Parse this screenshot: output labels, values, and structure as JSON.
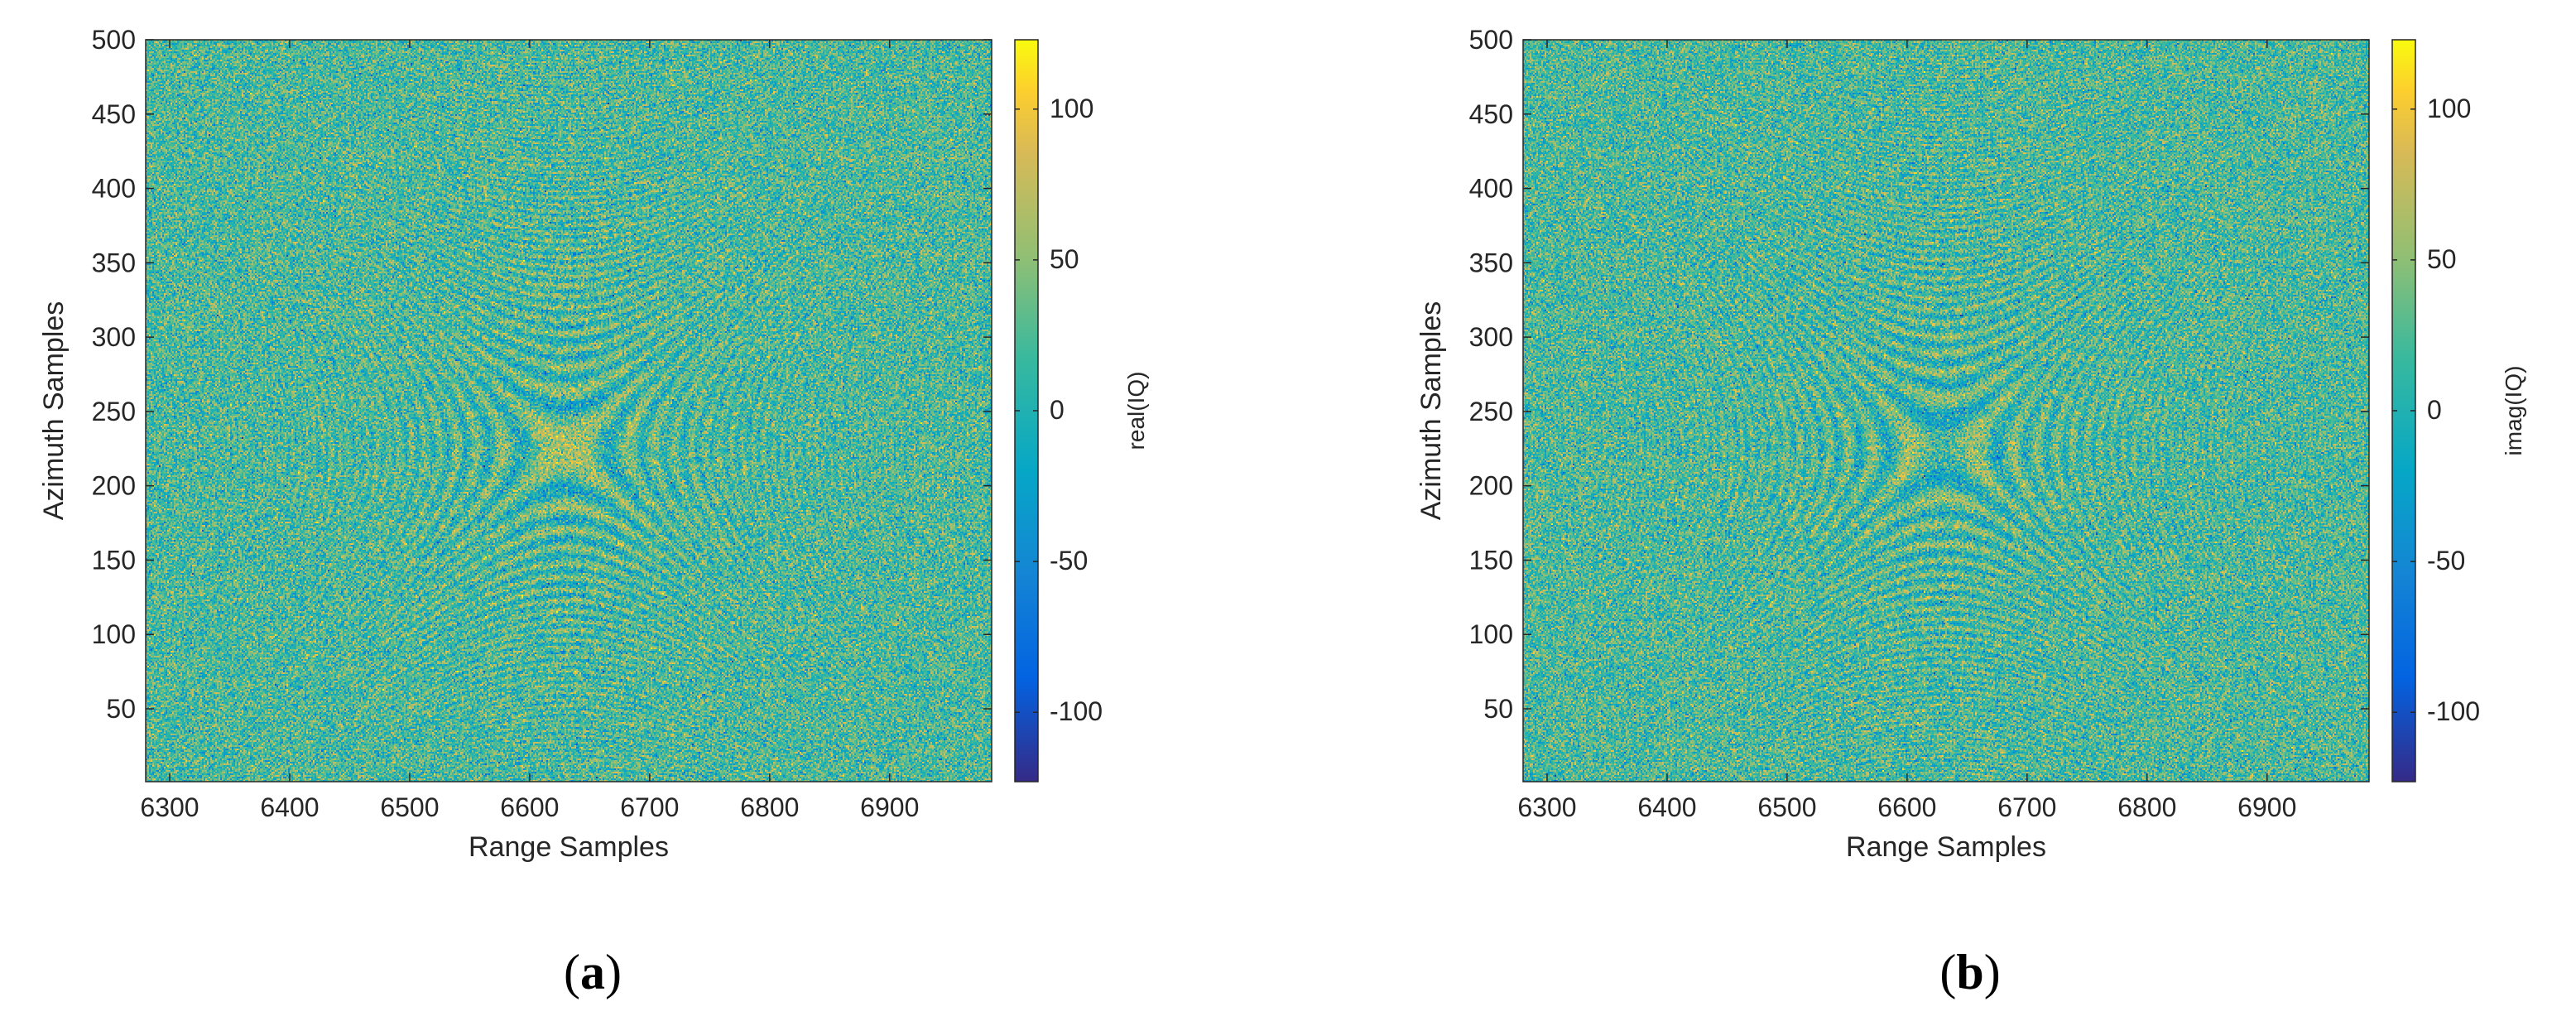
{
  "chart_data": [
    {
      "type": "heatmap",
      "panel_label": "a",
      "xlabel": "Range Samples",
      "ylabel": "Azimuth Samples",
      "colorbar_label": "real(IQ)",
      "xlim": [
        6280,
        6985
      ],
      "ylim": [
        1,
        500
      ],
      "x_ticks": [
        6300,
        6400,
        6500,
        6600,
        6700,
        6800,
        6900
      ],
      "y_ticks": [
        50,
        100,
        150,
        200,
        250,
        300,
        350,
        400,
        450,
        500
      ],
      "colorbar_ticks": [
        100,
        50,
        0,
        -50,
        -100
      ],
      "clim": [
        -123,
        123
      ],
      "colormap": "parula",
      "pattern_center": {
        "x": 6630,
        "y": 225
      },
      "noise_level": 30
    },
    {
      "type": "heatmap",
      "panel_label": "b",
      "xlabel": "Range Samples",
      "ylabel": "Azimuth Samples",
      "colorbar_label": "imag(IQ)",
      "xlim": [
        6280,
        6985
      ],
      "ylim": [
        1,
        500
      ],
      "x_ticks": [
        6300,
        6400,
        6500,
        6600,
        6700,
        6800,
        6900
      ],
      "y_ticks": [
        50,
        100,
        150,
        200,
        250,
        300,
        350,
        400,
        450,
        500
      ],
      "colorbar_ticks": [
        100,
        50,
        0,
        -50,
        -100
      ],
      "clim": [
        -123,
        123
      ],
      "colormap": "parula",
      "pattern_center": {
        "x": 6630,
        "y": 225
      },
      "noise_level": 30
    }
  ]
}
